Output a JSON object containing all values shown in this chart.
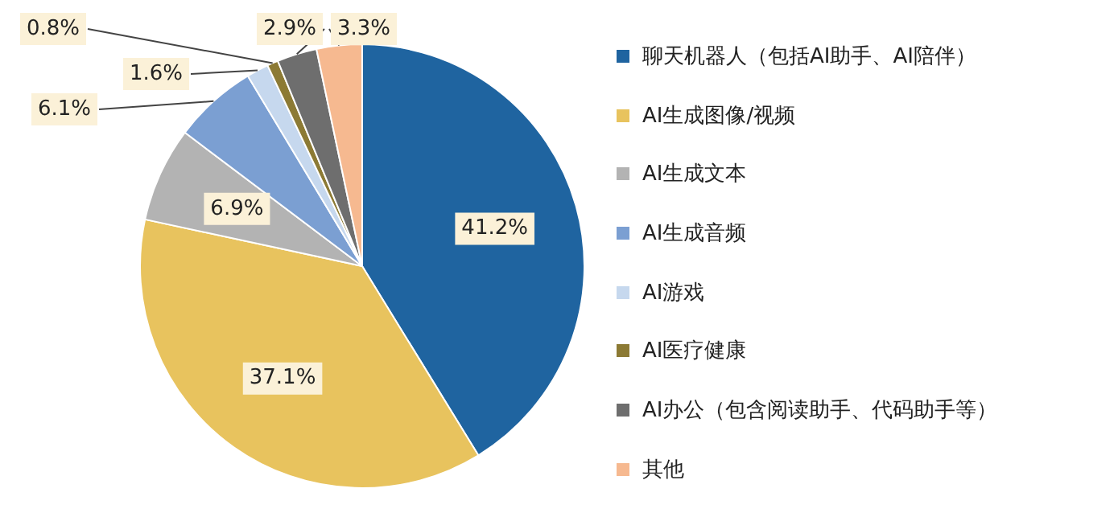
{
  "chart_data": {
    "type": "pie",
    "categories": [
      "聊天机器人（包括AI助手、AI陪伴）",
      "AI生成图像/视频",
      "AI生成文本",
      "AI生成音频",
      "AI游戏",
      "AI医疗健康",
      "AI办公（包含阅读助手、代码助手等）",
      "其他"
    ],
    "values": [
      41.2,
      37.1,
      6.9,
      6.1,
      1.6,
      0.8,
      2.9,
      3.3
    ],
    "value_labels": [
      "41.2%",
      "37.1%",
      "6.9%",
      "6.1%",
      "1.6%",
      "0.8%",
      "2.9%",
      "3.3%"
    ],
    "colors": [
      "#1f64a0",
      "#e8c35e",
      "#b3b3b3",
      "#7b9fd2",
      "#c6d8ee",
      "#8c7a34",
      "#6e6e6e",
      "#f6b990"
    ],
    "legend": "right"
  }
}
